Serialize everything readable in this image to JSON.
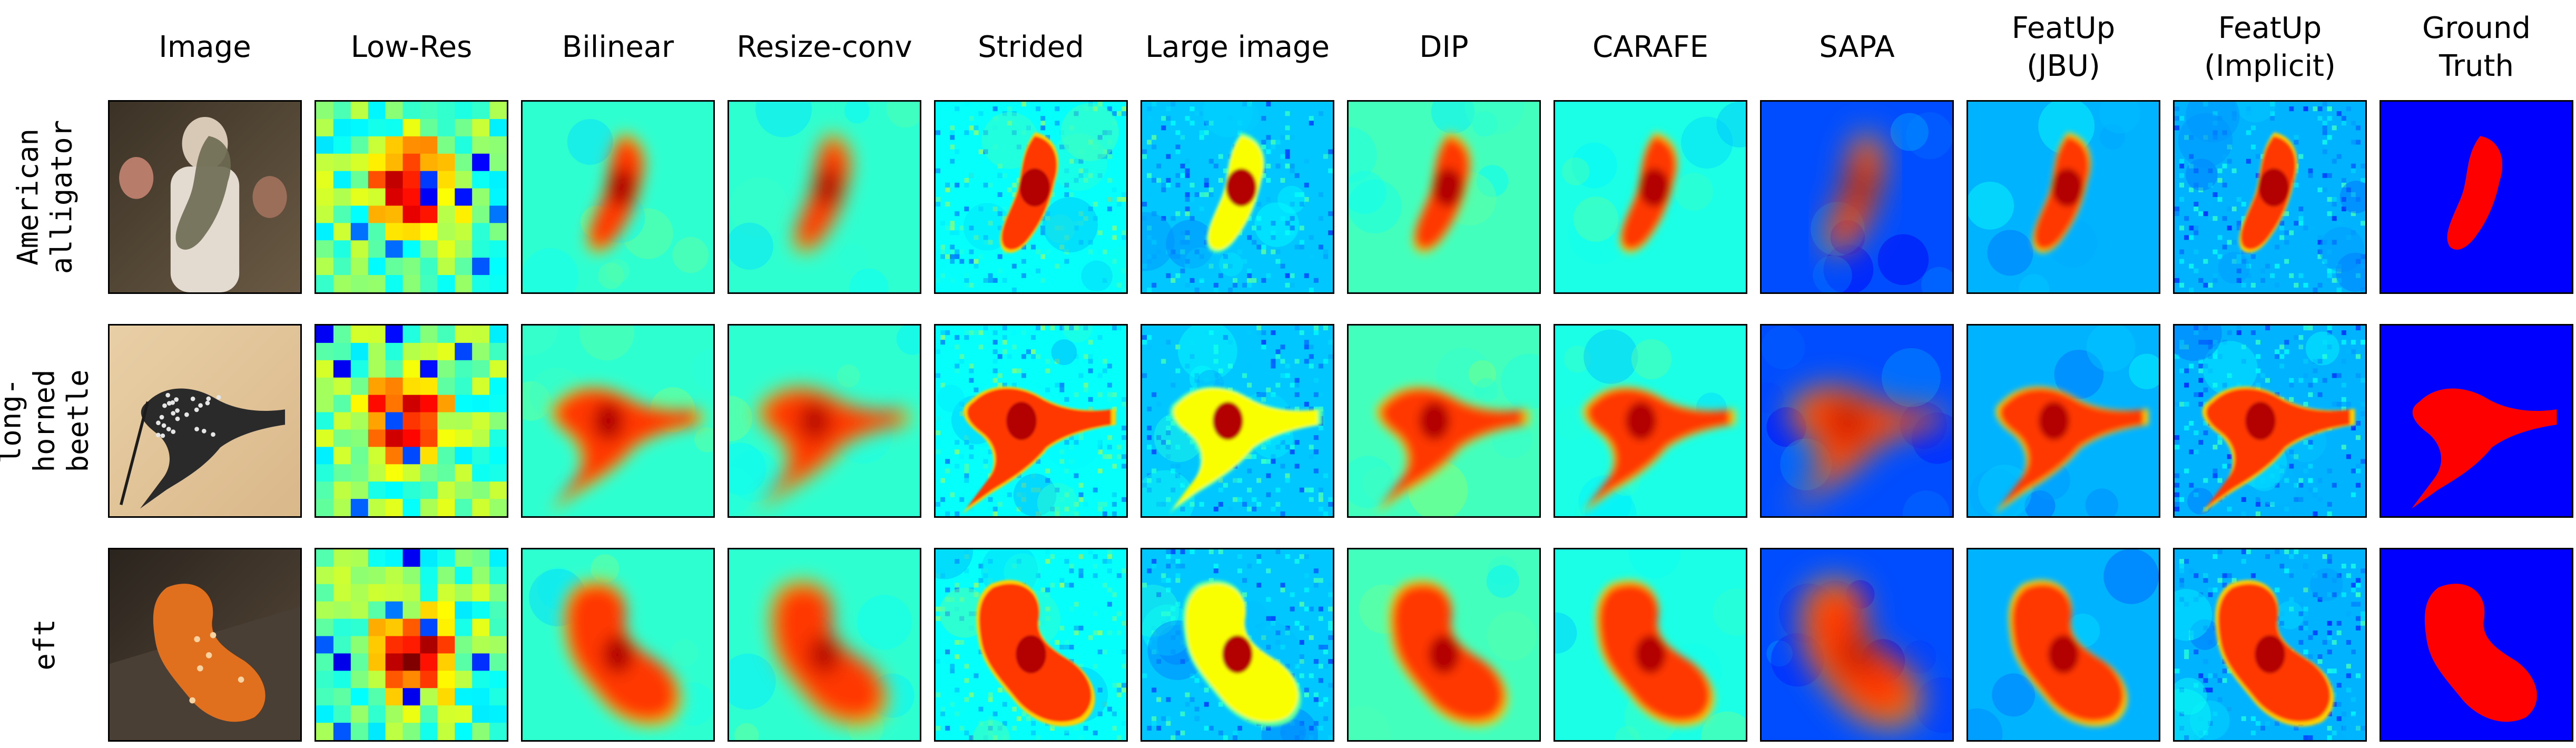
{
  "figure": {
    "columns": [
      {
        "id": "image",
        "label": "Image"
      },
      {
        "id": "lowres",
        "label": "Low-Res"
      },
      {
        "id": "bilinear",
        "label": "Bilinear"
      },
      {
        "id": "resizeconv",
        "label": "Resize-conv"
      },
      {
        "id": "strided",
        "label": "Strided"
      },
      {
        "id": "large",
        "label": "Large image"
      },
      {
        "id": "dip",
        "label": "DIP"
      },
      {
        "id": "carafe",
        "label": "CARAFE"
      },
      {
        "id": "sapa",
        "label": "SAPA"
      },
      {
        "id": "jbu",
        "label": "FeatUp\n(JBU)"
      },
      {
        "id": "implicit",
        "label": "FeatUp\n(Implicit)"
      },
      {
        "id": "gt",
        "label": "Ground\nTruth"
      }
    ],
    "rows": [
      {
        "id": "alligator",
        "label": "American\nalligator"
      },
      {
        "id": "beetle",
        "label": "long-horned\nbeetle"
      },
      {
        "id": "eft",
        "label": "eft"
      }
    ]
  }
}
